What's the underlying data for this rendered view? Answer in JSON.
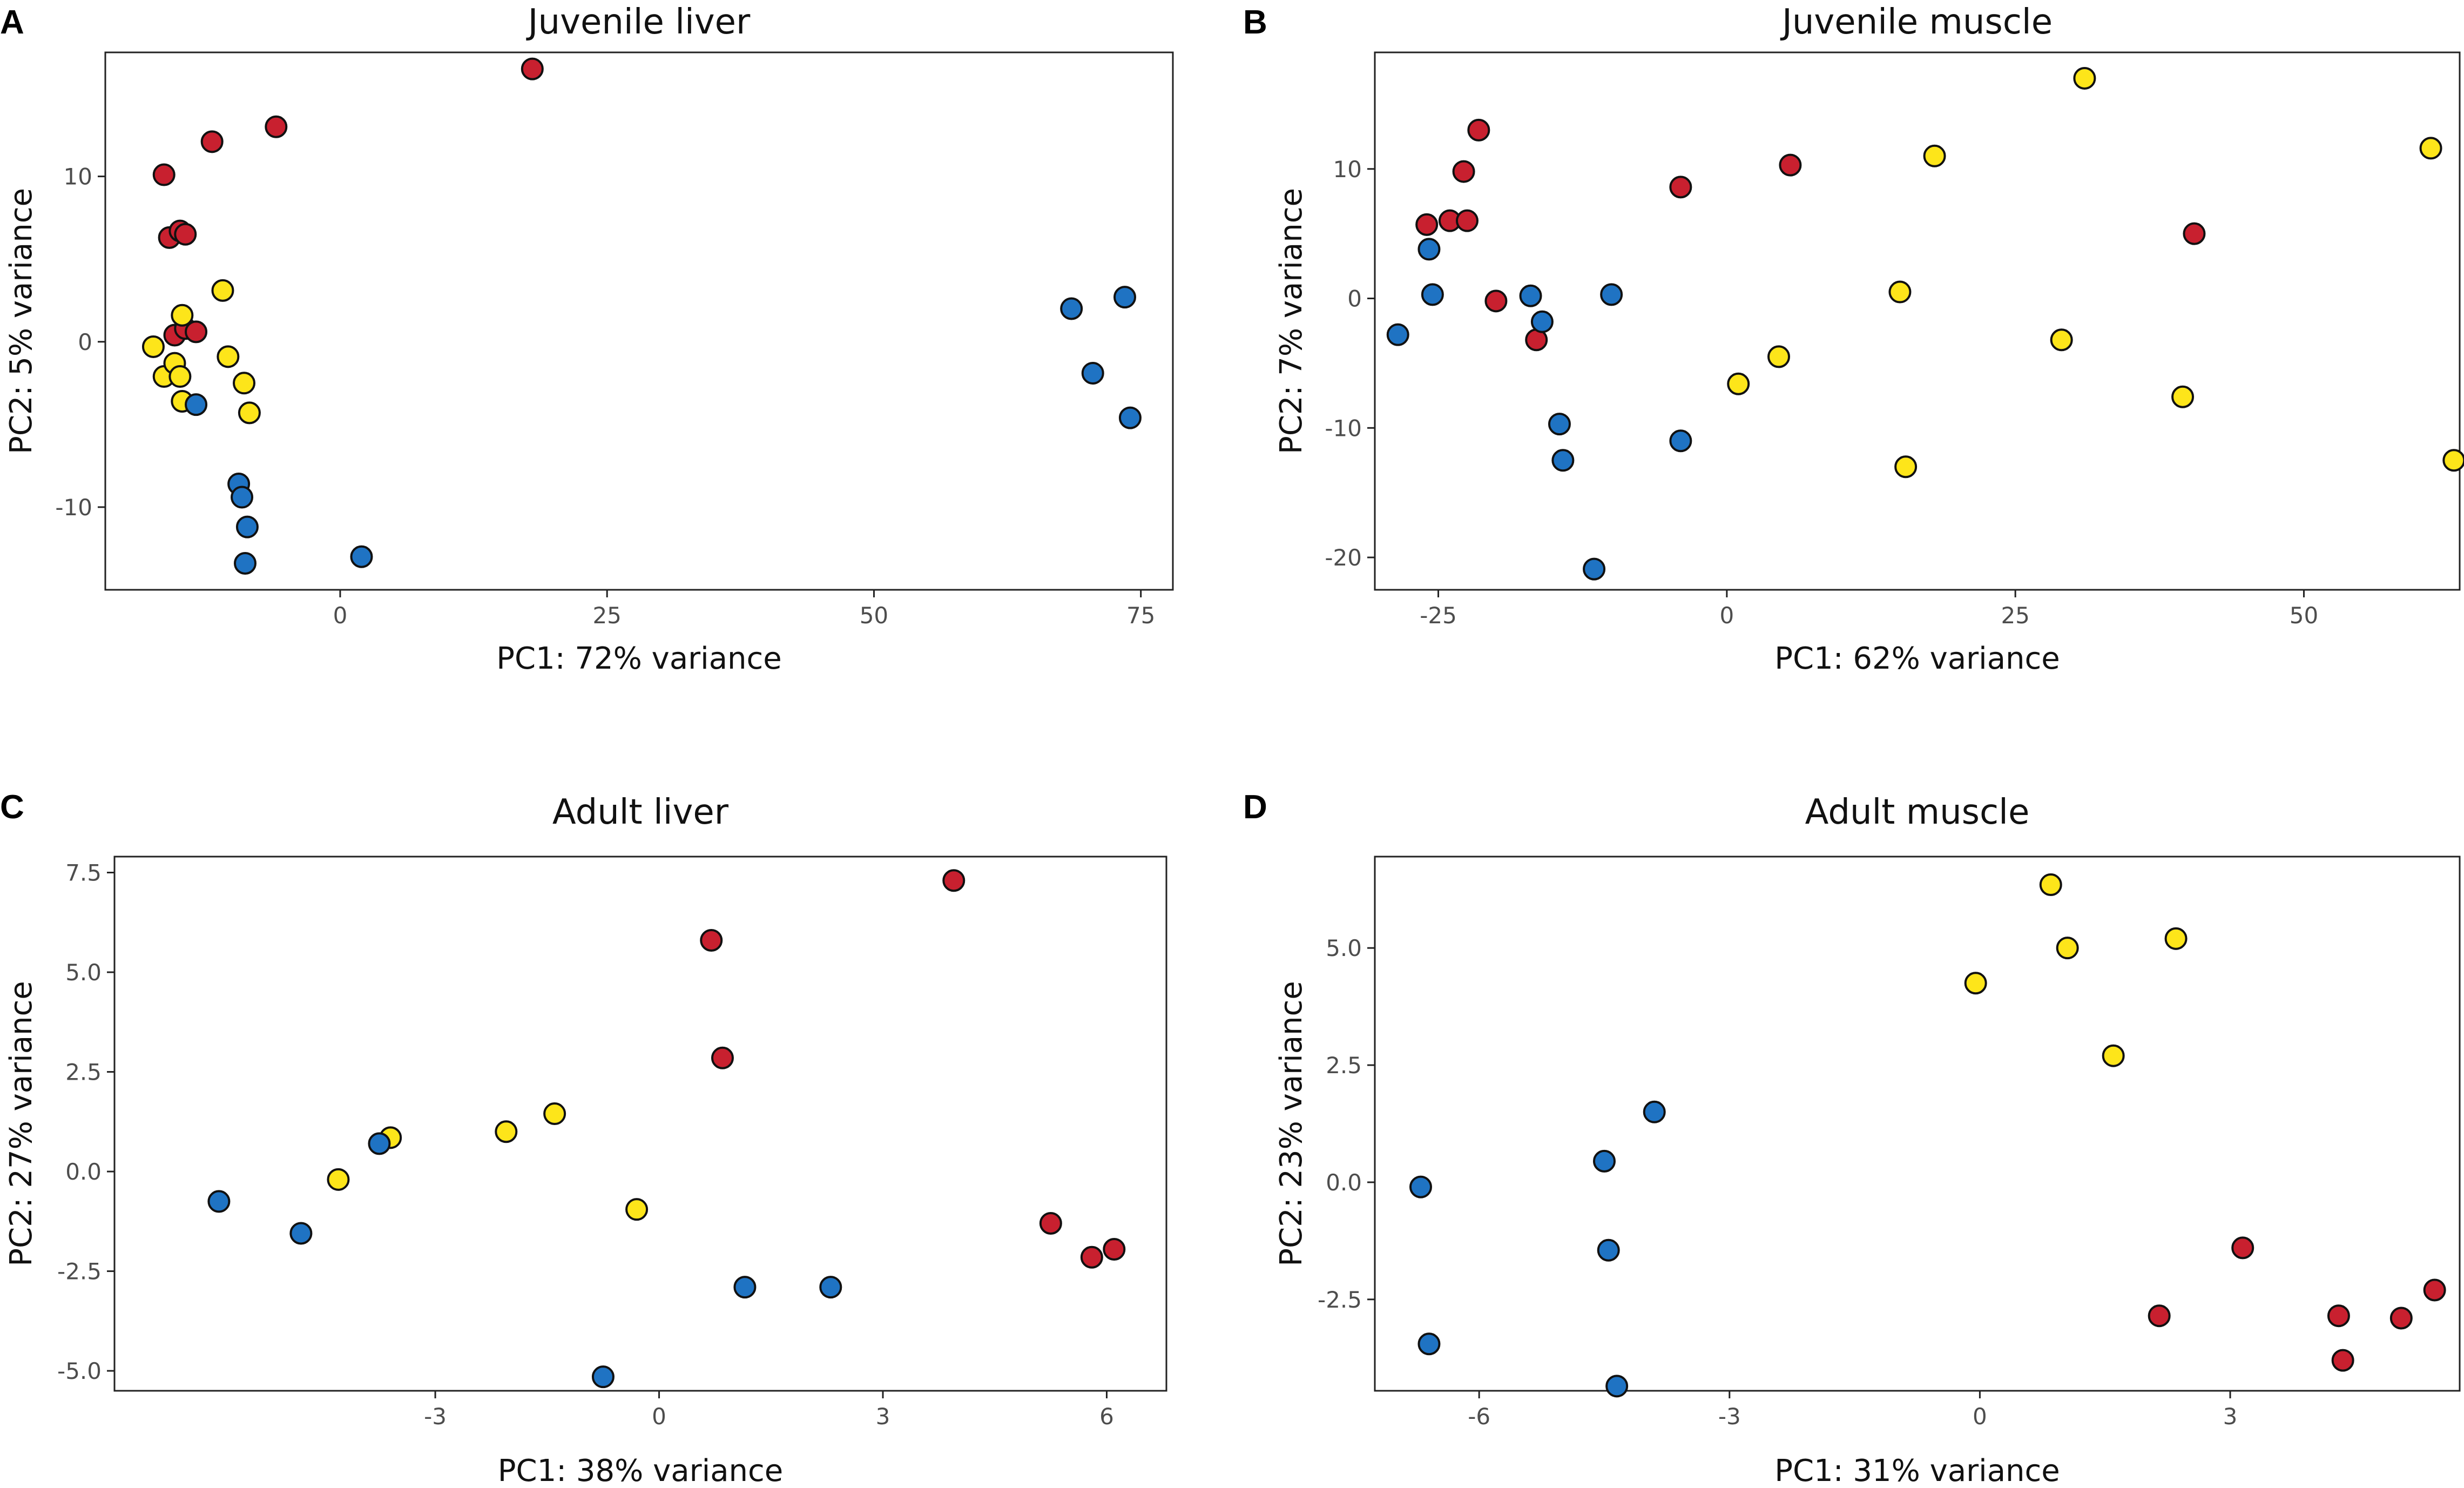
{
  "figure": {
    "colors": {
      "red": "#c8202f",
      "yellow": "#fde51a",
      "blue": "#1f73c3"
    }
  },
  "chart_data": [
    {
      "type": "scatter",
      "panel": "A",
      "title": "Juvenile liver",
      "xlabel": "PC1: 72% variance",
      "ylabel": "PC2: 5% variance",
      "xlim": [
        -22,
        78
      ],
      "ylim": [
        -15,
        17.5
      ],
      "xticks": [
        0,
        25,
        50,
        75
      ],
      "xtick_labels": [
        "0",
        "25",
        "50",
        "75"
      ],
      "yticks": [
        10,
        0,
        -10
      ],
      "ytick_labels": [
        "10",
        "0",
        "-10"
      ],
      "series": [
        {
          "name": "red",
          "color": "#c8202f",
          "points": [
            [
              -16.5,
              10.1
            ],
            [
              -16,
              6.3
            ],
            [
              -15,
              6.7
            ],
            [
              -14.5,
              6.5
            ],
            [
              -12,
              12.1
            ],
            [
              -6,
              13
            ],
            [
              18,
              16.5
            ],
            [
              -15.5,
              0.4
            ],
            [
              -14.5,
              0.8
            ],
            [
              -13.5,
              0.6
            ]
          ]
        },
        {
          "name": "yellow",
          "color": "#fde51a",
          "points": [
            [
              -17.5,
              -0.3
            ],
            [
              -16.5,
              -2.1
            ],
            [
              -15.5,
              -1.3
            ],
            [
              -15,
              -2.1
            ],
            [
              -14.8,
              1.6
            ],
            [
              -14.8,
              -3.6
            ],
            [
              -11,
              3.1
            ],
            [
              -10.5,
              -0.9
            ],
            [
              -9,
              -2.5
            ],
            [
              -8.5,
              -4.3
            ]
          ]
        },
        {
          "name": "blue",
          "color": "#1f73c3",
          "points": [
            [
              -13.5,
              -3.8
            ],
            [
              -9.5,
              -8.6
            ],
            [
              -9.2,
              -9.4
            ],
            [
              -8.7,
              -11.2
            ],
            [
              -8.9,
              -13.4
            ],
            [
              2,
              -13
            ],
            [
              68.5,
              2
            ],
            [
              73.5,
              2.7
            ],
            [
              70.5,
              -1.9
            ],
            [
              74,
              -4.6
            ]
          ]
        }
      ]
    },
    {
      "type": "scatter",
      "panel": "B",
      "title": "Juvenile muscle",
      "xlabel": "PC1: 62% variance",
      "ylabel": "PC2: 7% variance",
      "xlim": [
        -30.5,
        63.5
      ],
      "ylim": [
        -22.5,
        19
      ],
      "xticks": [
        -25,
        0,
        25,
        50
      ],
      "xtick_labels": [
        "-25",
        "0",
        "25",
        "50"
      ],
      "yticks": [
        10,
        0,
        -10,
        -20
      ],
      "ytick_labels": [
        "10",
        "0",
        "-10",
        "-20"
      ],
      "series": [
        {
          "name": "red",
          "color": "#c8202f",
          "points": [
            [
              -26,
              5.7
            ],
            [
              -24,
              6
            ],
            [
              -22.5,
              6
            ],
            [
              -22.8,
              9.8
            ],
            [
              -21.5,
              13
            ],
            [
              -20,
              -0.2
            ],
            [
              -16.5,
              -3.2
            ],
            [
              -4,
              8.6
            ],
            [
              5.5,
              10.3
            ],
            [
              40.5,
              5
            ]
          ]
        },
        {
          "name": "yellow",
          "color": "#fde51a",
          "points": [
            [
              1,
              -6.6
            ],
            [
              4.5,
              -4.5
            ],
            [
              15,
              0.5
            ],
            [
              15.5,
              -13
            ],
            [
              18,
              11
            ],
            [
              29,
              -3.2
            ],
            [
              31,
              17
            ],
            [
              39.5,
              -7.6
            ],
            [
              61,
              11.6
            ],
            [
              63,
              -12.5
            ]
          ]
        },
        {
          "name": "blue",
          "color": "#1f73c3",
          "points": [
            [
              -28.5,
              -2.8
            ],
            [
              -25.8,
              3.8
            ],
            [
              -25.5,
              0.3
            ],
            [
              -17,
              0.2
            ],
            [
              -16,
              -1.8
            ],
            [
              -14.5,
              -9.7
            ],
            [
              -14.2,
              -12.5
            ],
            [
              -10,
              0.3
            ],
            [
              -4,
              -11
            ],
            [
              -11.5,
              -20.9
            ]
          ]
        }
      ]
    },
    {
      "type": "scatter",
      "panel": "C",
      "title": "Adult liver",
      "xlabel": "PC1: 38% variance",
      "ylabel": "PC2: 27% variance",
      "xlim": [
        -7.3,
        6.8
      ],
      "ylim": [
        -5.5,
        7.9
      ],
      "xticks": [
        -3,
        0,
        3,
        6
      ],
      "xtick_labels": [
        "-3",
        "0",
        "3",
        "6"
      ],
      "yticks": [
        7.5,
        5.0,
        2.5,
        0.0,
        -2.5,
        -5.0
      ],
      "ytick_labels": [
        "7.5",
        "5.0",
        "2.5",
        "0.0",
        "-2.5",
        "-5.0"
      ],
      "series": [
        {
          "name": "red",
          "color": "#c8202f",
          "points": [
            [
              0.7,
              5.8
            ],
            [
              0.85,
              2.85
            ],
            [
              3.95,
              7.3
            ],
            [
              5.25,
              -1.3
            ],
            [
              5.8,
              -2.15
            ],
            [
              6.1,
              -1.95
            ]
          ]
        },
        {
          "name": "yellow",
          "color": "#fde51a",
          "points": [
            [
              -4.3,
              -0.2
            ],
            [
              -3.6,
              0.85
            ],
            [
              -2.05,
              1
            ],
            [
              -1.4,
              1.45
            ],
            [
              -0.3,
              -0.95
            ]
          ]
        },
        {
          "name": "blue",
          "color": "#1f73c3",
          "points": [
            [
              -5.9,
              -0.75
            ],
            [
              -4.8,
              -1.55
            ],
            [
              -3.75,
              0.7
            ],
            [
              -0.75,
              -5.15
            ],
            [
              1.15,
              -2.9
            ],
            [
              2.3,
              -2.9
            ]
          ]
        }
      ]
    },
    {
      "type": "scatter",
      "panel": "D",
      "title": "Adult muscle",
      "xlabel": "PC1: 31% variance",
      "ylabel": "PC2: 23% variance",
      "xlim": [
        -7.25,
        5.75
      ],
      "ylim": [
        -4.45,
        6.95
      ],
      "xticks": [
        -6,
        -3,
        0,
        3
      ],
      "xtick_labels": [
        "-6",
        "-3",
        "0",
        "3"
      ],
      "yticks": [
        5.0,
        2.5,
        0.0,
        -2.5
      ],
      "ytick_labels": [
        "5.0",
        "2.5",
        "0.0",
        "-2.5"
      ],
      "series": [
        {
          "name": "red",
          "color": "#c8202f",
          "points": [
            [
              2.15,
              -2.85
            ],
            [
              3.15,
              -1.4
            ],
            [
              4.3,
              -2.85
            ],
            [
              4.35,
              -3.8
            ],
            [
              5.05,
              -2.9
            ],
            [
              5.45,
              -2.3
            ]
          ]
        },
        {
          "name": "yellow",
          "color": "#fde51a",
          "points": [
            [
              -0.05,
              4.25
            ],
            [
              0.85,
              6.35
            ],
            [
              1.05,
              5
            ],
            [
              1.6,
              2.7
            ],
            [
              2.35,
              5.2
            ]
          ]
        },
        {
          "name": "blue",
          "color": "#1f73c3",
          "points": [
            [
              -6.7,
              -0.1
            ],
            [
              -6.6,
              -3.45
            ],
            [
              -4.5,
              0.45
            ],
            [
              -4.45,
              -1.45
            ],
            [
              -4.35,
              -4.35
            ],
            [
              -3.9,
              1.5
            ]
          ]
        }
      ]
    }
  ]
}
